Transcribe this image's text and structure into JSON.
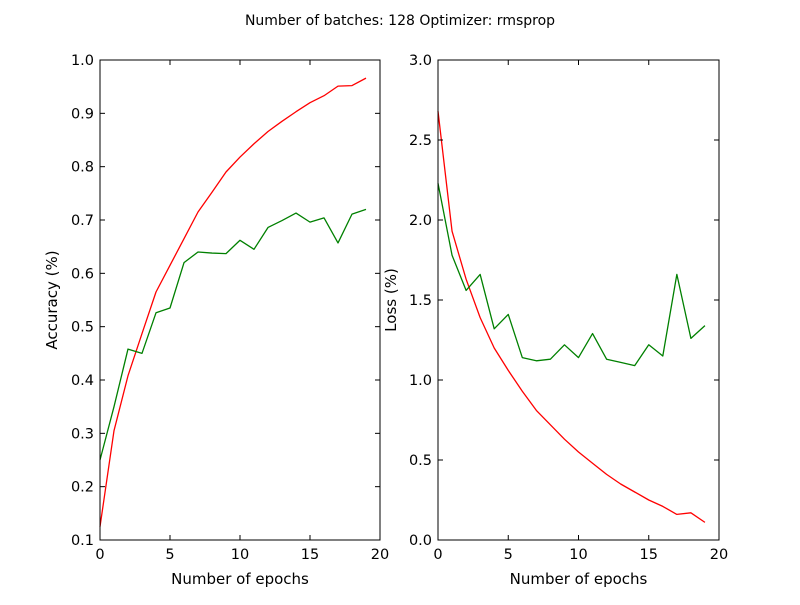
{
  "suptitle": "Number of batches: 128 Optimizer: rmsprop",
  "colors": {
    "red": "#ff0000",
    "green": "#008000"
  },
  "chart_data": [
    {
      "type": "line",
      "xlabel": "Number of epochs",
      "ylabel": "Accuracy (%)",
      "xlim": [
        0,
        20
      ],
      "ylim": [
        0.1,
        1.0
      ],
      "xticks": [
        "0",
        "5",
        "10",
        "15",
        "20"
      ],
      "yticks": [
        "0.1",
        "0.2",
        "0.3",
        "0.4",
        "0.5",
        "0.6",
        "0.7",
        "0.8",
        "0.9",
        "1.0"
      ],
      "grid": false,
      "x": [
        0,
        1,
        2,
        3,
        4,
        5,
        6,
        7,
        8,
        9,
        10,
        11,
        12,
        13,
        14,
        15,
        16,
        17,
        18,
        19
      ],
      "series": [
        {
          "color": "#ff0000",
          "values": [
            0.125,
            0.305,
            0.408,
            0.487,
            0.565,
            0.615,
            0.665,
            0.715,
            0.752,
            0.79,
            0.818,
            0.843,
            0.866,
            0.885,
            0.903,
            0.92,
            0.933,
            0.951,
            0.952,
            0.966
          ]
        },
        {
          "color": "#008000",
          "values": [
            0.25,
            0.35,
            0.458,
            0.45,
            0.526,
            0.535,
            0.62,
            0.64,
            0.638,
            0.637,
            0.662,
            0.645,
            0.686,
            0.699,
            0.713,
            0.696,
            0.704,
            0.657,
            0.711,
            0.72
          ]
        }
      ]
    },
    {
      "type": "line",
      "xlabel": "Number of epochs",
      "ylabel": "Loss (%)",
      "xlim": [
        0,
        20
      ],
      "ylim": [
        0.0,
        3.0
      ],
      "xticks": [
        "0",
        "5",
        "10",
        "15",
        "20"
      ],
      "yticks": [
        "0.0",
        "0.5",
        "1.0",
        "1.5",
        "2.0",
        "2.5",
        "3.0"
      ],
      "grid": false,
      "x": [
        0,
        1,
        2,
        3,
        4,
        5,
        6,
        7,
        8,
        9,
        10,
        11,
        12,
        13,
        14,
        15,
        16,
        17,
        18,
        19
      ],
      "series": [
        {
          "color": "#ff0000",
          "values": [
            2.68,
            1.93,
            1.63,
            1.39,
            1.2,
            1.06,
            0.93,
            0.81,
            0.72,
            0.63,
            0.55,
            0.48,
            0.41,
            0.35,
            0.3,
            0.25,
            0.21,
            0.16,
            0.17,
            0.11
          ]
        },
        {
          "color": "#008000",
          "values": [
            2.23,
            1.78,
            1.56,
            1.66,
            1.32,
            1.41,
            1.14,
            1.12,
            1.13,
            1.22,
            1.14,
            1.29,
            1.13,
            1.11,
            1.09,
            1.22,
            1.15,
            1.66,
            1.26,
            1.34
          ]
        }
      ]
    }
  ]
}
